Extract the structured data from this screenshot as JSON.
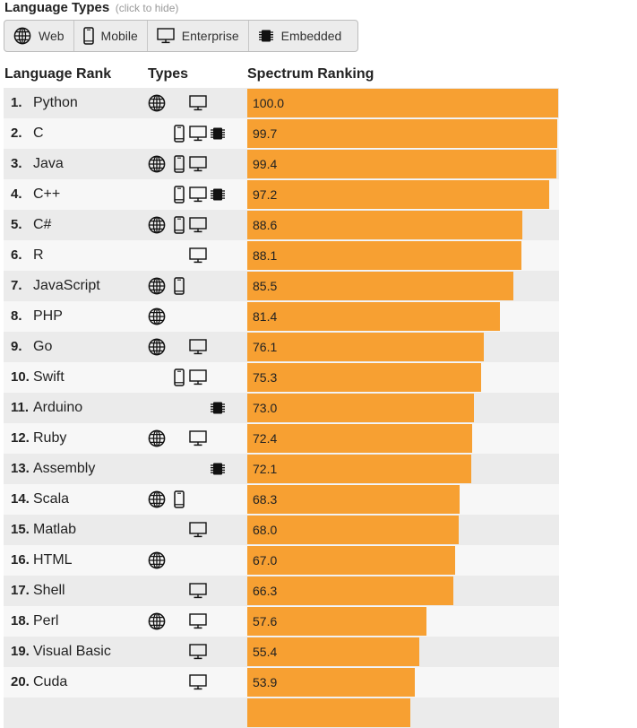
{
  "header": {
    "title": "Language Types",
    "hint": "(click to hide)"
  },
  "filters": [
    {
      "label": "Web",
      "icon": "globe-icon"
    },
    {
      "label": "Mobile",
      "icon": "phone-icon"
    },
    {
      "label": "Enterprise",
      "icon": "monitor-icon"
    },
    {
      "label": "Embedded",
      "icon": "chip-icon"
    }
  ],
  "columns": {
    "rank": "Language Rank",
    "types": "Types",
    "ranking": "Spectrum Ranking"
  },
  "colors": {
    "bar": "#f7a032",
    "row_odd": "#ebebeb",
    "row_even": "#f7f7f7"
  },
  "chart_data": {
    "type": "bar",
    "orientation": "horizontal",
    "xlim": [
      0,
      100
    ],
    "categories": [
      "Python",
      "C",
      "Java",
      "C++",
      "C#",
      "R",
      "JavaScript",
      "PHP",
      "Go",
      "Swift",
      "Arduino",
      "Ruby",
      "Assembly",
      "Scala",
      "Matlab",
      "HTML",
      "Shell",
      "Perl",
      "Visual Basic",
      "Cuda"
    ],
    "ranks": [
      "1.",
      "2.",
      "3.",
      "4.",
      "5.",
      "6.",
      "7.",
      "8.",
      "9.",
      "10.",
      "11.",
      "12.",
      "13.",
      "14.",
      "15.",
      "16.",
      "17.",
      "18.",
      "19.",
      "20."
    ],
    "values": [
      100.0,
      99.7,
      99.4,
      97.2,
      88.6,
      88.1,
      85.5,
      81.4,
      76.1,
      75.3,
      73.0,
      72.4,
      72.1,
      68.3,
      68.0,
      67.0,
      66.3,
      57.6,
      55.4,
      53.9
    ],
    "value_labels": [
      "100.0",
      "99.7",
      "99.4",
      "97.2",
      "88.6",
      "88.1",
      "85.5",
      "81.4",
      "76.1",
      "75.3",
      "73.0",
      "72.4",
      "72.1",
      "68.3",
      "68.0",
      "67.0",
      "66.3",
      "57.6",
      "55.4",
      "53.9"
    ],
    "types": [
      [
        "web",
        "enterprise"
      ],
      [
        "mobile",
        "enterprise",
        "embedded"
      ],
      [
        "web",
        "mobile",
        "enterprise"
      ],
      [
        "mobile",
        "enterprise",
        "embedded"
      ],
      [
        "web",
        "mobile",
        "enterprise"
      ],
      [
        "enterprise"
      ],
      [
        "web",
        "mobile"
      ],
      [
        "web"
      ],
      [
        "web",
        "enterprise"
      ],
      [
        "mobile",
        "enterprise"
      ],
      [
        "embedded"
      ],
      [
        "web",
        "enterprise"
      ],
      [
        "embedded"
      ],
      [
        "web",
        "mobile"
      ],
      [
        "enterprise"
      ],
      [
        "web"
      ],
      [
        "enterprise"
      ],
      [
        "web",
        "enterprise"
      ],
      [
        "enterprise"
      ],
      [
        "enterprise"
      ]
    ]
  }
}
